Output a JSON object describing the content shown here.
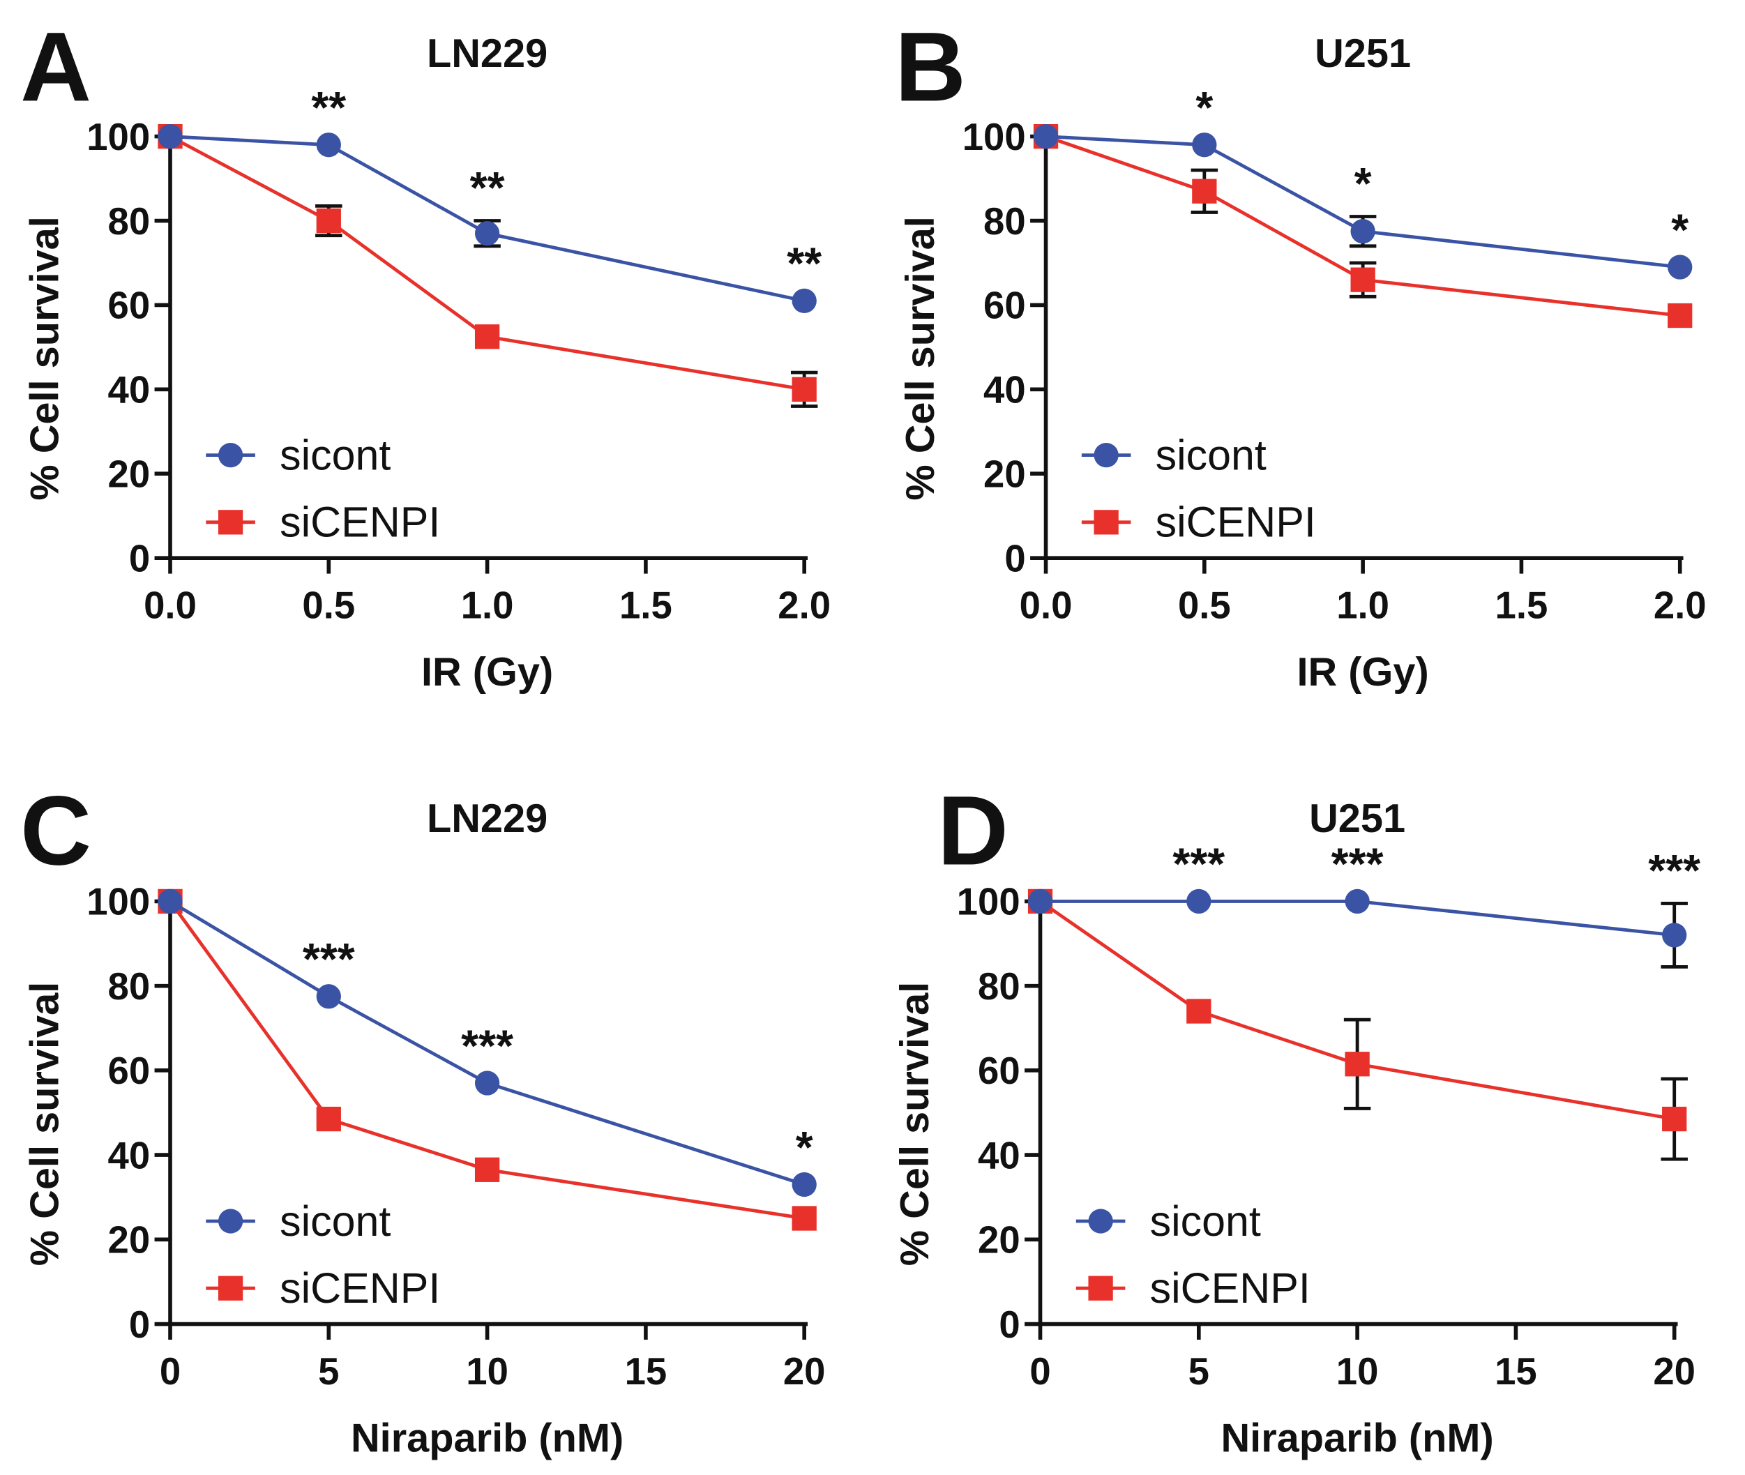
{
  "colors": {
    "sicont": "#3a53a4",
    "siCENPI": "#e8312a",
    "axis": "#111111"
  },
  "chart_data": [
    {
      "panel": "A",
      "type": "line",
      "title": "LN229",
      "xlabel": "IR (Gy)",
      "ylabel": "% Cell survival",
      "xlim": [
        0,
        2
      ],
      "ylim": [
        0,
        100
      ],
      "xticks": [
        0,
        0.5,
        1,
        1.5,
        2
      ],
      "xtick_labels": [
        "0.0",
        "0.5",
        "1.0",
        "1.5",
        "2.0"
      ],
      "yticks": [
        0,
        20,
        40,
        60,
        80,
        100
      ],
      "x": [
        0,
        0.5,
        1,
        2
      ],
      "legend": "bottom-left",
      "series": [
        {
          "name": "sicont",
          "marker": "circle",
          "values": [
            100,
            98,
            77,
            61
          ],
          "errors": [
            0,
            1,
            3,
            1
          ]
        },
        {
          "name": "siCENPI",
          "marker": "square",
          "values": [
            100,
            80,
            52.5,
            40
          ],
          "errors": [
            0,
            3.5,
            1,
            4
          ]
        }
      ],
      "annotations": [
        "",
        "**",
        "**",
        "**"
      ]
    },
    {
      "panel": "B",
      "type": "line",
      "title": "U251",
      "xlabel": "IR (Gy)",
      "ylabel": "% Cell survival",
      "xlim": [
        0,
        2
      ],
      "ylim": [
        0,
        100
      ],
      "xticks": [
        0,
        0.5,
        1,
        1.5,
        2
      ],
      "xtick_labels": [
        "0.0",
        "0.5",
        "1.0",
        "1.5",
        "2.0"
      ],
      "yticks": [
        0,
        20,
        40,
        60,
        80,
        100
      ],
      "x": [
        0,
        0.5,
        1,
        2
      ],
      "legend": "bottom-left",
      "series": [
        {
          "name": "sicont",
          "marker": "circle",
          "values": [
            100,
            98,
            77.5,
            69
          ],
          "errors": [
            0,
            1,
            3.5,
            1
          ]
        },
        {
          "name": "siCENPI",
          "marker": "square",
          "values": [
            100,
            87,
            66,
            57.5
          ],
          "errors": [
            0,
            5,
            4,
            1
          ]
        }
      ],
      "annotations": [
        "",
        "*",
        "*",
        "*"
      ]
    },
    {
      "panel": "C",
      "type": "line",
      "title": "LN229",
      "xlabel": "Niraparib (nM)",
      "ylabel": "% Cell survival",
      "xlim": [
        0,
        20
      ],
      "ylim": [
        0,
        100
      ],
      "xticks": [
        0,
        5,
        10,
        15,
        20
      ],
      "xtick_labels": [
        "0",
        "5",
        "10",
        "15",
        "20"
      ],
      "yticks": [
        0,
        20,
        40,
        60,
        80,
        100
      ],
      "x": [
        0,
        5,
        10,
        20
      ],
      "legend": "bottom-left",
      "series": [
        {
          "name": "sicont",
          "marker": "circle",
          "values": [
            100,
            77.5,
            57,
            33
          ],
          "errors": [
            0,
            1,
            1,
            1
          ]
        },
        {
          "name": "siCENPI",
          "marker": "square",
          "values": [
            100,
            48.5,
            36.5,
            25
          ],
          "errors": [
            0,
            1,
            1,
            1
          ]
        }
      ],
      "annotations": [
        "",
        "***",
        "***",
        "*"
      ]
    },
    {
      "panel": "D",
      "type": "line",
      "title": "U251",
      "xlabel": "Niraparib (nM)",
      "ylabel": "% Cell survival",
      "xlim": [
        0,
        20
      ],
      "ylim": [
        0,
        100
      ],
      "xticks": [
        0,
        5,
        10,
        15,
        20
      ],
      "xtick_labels": [
        "0",
        "5",
        "10",
        "15",
        "20"
      ],
      "yticks": [
        0,
        20,
        40,
        60,
        80,
        100
      ],
      "x": [
        0,
        5,
        10,
        20
      ],
      "legend": "bottom-left",
      "series": [
        {
          "name": "sicont",
          "marker": "circle",
          "values": [
            100,
            100,
            100,
            92
          ],
          "errors": [
            0,
            1,
            1,
            7.5
          ]
        },
        {
          "name": "siCENPI",
          "marker": "square",
          "values": [
            100,
            74,
            61.5,
            48.5
          ],
          "errors": [
            0,
            1,
            10.5,
            9.5
          ]
        }
      ],
      "annotations": [
        "",
        "***",
        "***",
        "***"
      ]
    }
  ]
}
